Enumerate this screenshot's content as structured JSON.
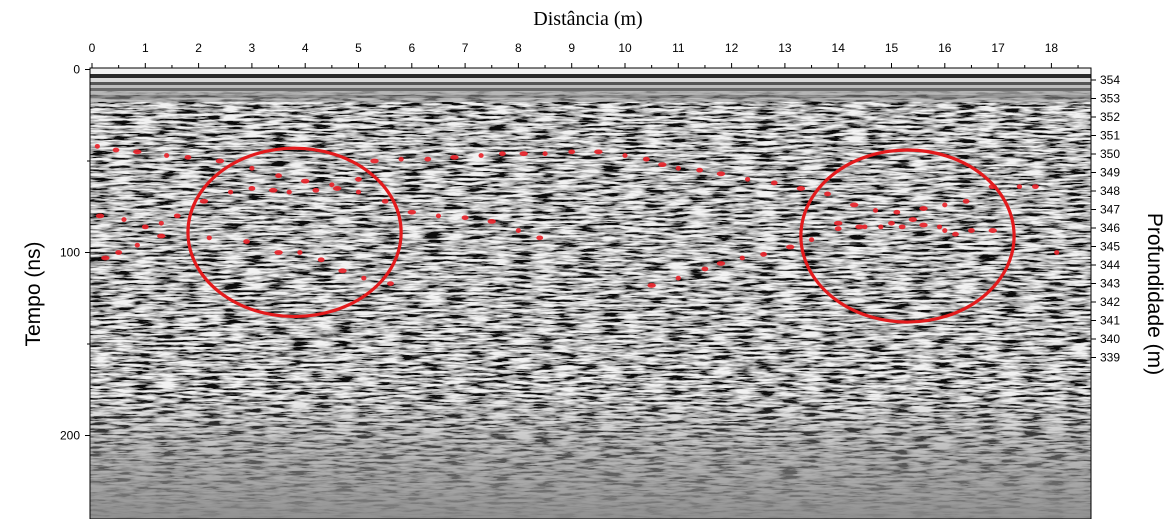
{
  "chart_data": {
    "type": "radargram",
    "title": "Distância (m)",
    "xlabel": "Distância (m)",
    "ylabel_left": "Tempo (ns)",
    "ylabel_right": "Profundidade (m)",
    "x_ticks": [
      0,
      1,
      2,
      3,
      4,
      5,
      6,
      7,
      8,
      9,
      10,
      11,
      12,
      13,
      14,
      15,
      16,
      17,
      18
    ],
    "xlim": [
      0,
      18.9
    ],
    "left_ticks": [
      0,
      100,
      200
    ],
    "left_ylim": [
      0,
      245
    ],
    "right_ticks": [
      354,
      353,
      352,
      351,
      350,
      349,
      348,
      347,
      346,
      345,
      344,
      343,
      342,
      341,
      340,
      339
    ],
    "right_ylim": [
      354.1,
      338.6
    ],
    "colors": {
      "markers": "#e8232a",
      "circles": "#e31a1c",
      "noise": "#808080"
    },
    "reflector_points": [
      {
        "x": 0.1,
        "t": 42
      },
      {
        "x": 0.45,
        "t": 44
      },
      {
        "x": 0.85,
        "t": 45
      },
      {
        "x": 1.4,
        "t": 47
      },
      {
        "x": 1.8,
        "t": 48
      },
      {
        "x": 2.4,
        "t": 50
      },
      {
        "x": 3.0,
        "t": 54
      },
      {
        "x": 3.5,
        "t": 58
      },
      {
        "x": 4.0,
        "t": 61
      },
      {
        "x": 4.5,
        "t": 63
      },
      {
        "x": 5.0,
        "t": 60
      },
      {
        "x": 5.3,
        "t": 50
      },
      {
        "x": 5.8,
        "t": 49
      },
      {
        "x": 6.3,
        "t": 49
      },
      {
        "x": 6.8,
        "t": 48
      },
      {
        "x": 7.3,
        "t": 47
      },
      {
        "x": 7.7,
        "t": 46
      },
      {
        "x": 8.1,
        "t": 46
      },
      {
        "x": 8.5,
        "t": 46
      },
      {
        "x": 9.0,
        "t": 45
      },
      {
        "x": 9.5,
        "t": 45
      },
      {
        "x": 10.0,
        "t": 47
      },
      {
        "x": 10.4,
        "t": 49
      },
      {
        "x": 10.7,
        "t": 52
      },
      {
        "x": 11.0,
        "t": 54
      },
      {
        "x": 11.4,
        "t": 55
      },
      {
        "x": 11.8,
        "t": 57
      },
      {
        "x": 12.3,
        "t": 60
      },
      {
        "x": 12.8,
        "t": 62
      },
      {
        "x": 13.3,
        "t": 65
      },
      {
        "x": 1.3,
        "t": 84
      },
      {
        "x": 1.6,
        "t": 80
      },
      {
        "x": 2.1,
        "t": 72
      },
      {
        "x": 2.6,
        "t": 67
      },
      {
        "x": 3.0,
        "t": 65
      },
      {
        "x": 3.4,
        "t": 66
      },
      {
        "x": 3.7,
        "t": 67
      },
      {
        "x": 4.2,
        "t": 66
      },
      {
        "x": 4.6,
        "t": 65
      },
      {
        "x": 5.0,
        "t": 67
      },
      {
        "x": 5.5,
        "t": 72
      },
      {
        "x": 6.0,
        "t": 78
      },
      {
        "x": 6.5,
        "t": 80
      },
      {
        "x": 7.0,
        "t": 81
      },
      {
        "x": 7.5,
        "t": 83
      },
      {
        "x": 8.0,
        "t": 88
      },
      {
        "x": 8.4,
        "t": 92
      },
      {
        "x": 0.15,
        "t": 80
      },
      {
        "x": 0.6,
        "t": 82
      },
      {
        "x": 1.0,
        "t": 86
      },
      {
        "x": 1.3,
        "t": 91
      },
      {
        "x": 0.85,
        "t": 96
      },
      {
        "x": 0.5,
        "t": 100
      },
      {
        "x": 0.25,
        "t": 103
      },
      {
        "x": 2.2,
        "t": 92
      },
      {
        "x": 2.9,
        "t": 94
      },
      {
        "x": 3.5,
        "t": 100
      },
      {
        "x": 3.9,
        "t": 100
      },
      {
        "x": 4.3,
        "t": 104
      },
      {
        "x": 4.7,
        "t": 110
      },
      {
        "x": 5.1,
        "t": 114
      },
      {
        "x": 5.6,
        "t": 117
      },
      {
        "x": 10.5,
        "t": 118
      },
      {
        "x": 11.0,
        "t": 114
      },
      {
        "x": 11.5,
        "t": 109
      },
      {
        "x": 11.8,
        "t": 106
      },
      {
        "x": 12.2,
        "t": 103
      },
      {
        "x": 12.6,
        "t": 101
      },
      {
        "x": 13.1,
        "t": 97
      },
      {
        "x": 13.5,
        "t": 93
      },
      {
        "x": 14.0,
        "t": 87
      },
      {
        "x": 14.4,
        "t": 86
      },
      {
        "x": 14.8,
        "t": 86
      },
      {
        "x": 15.2,
        "t": 86
      },
      {
        "x": 15.6,
        "t": 85
      },
      {
        "x": 16.0,
        "t": 88
      },
      {
        "x": 16.5,
        "t": 88
      },
      {
        "x": 16.9,
        "t": 88
      },
      {
        "x": 18.1,
        "t": 100
      },
      {
        "x": 13.8,
        "t": 68
      },
      {
        "x": 14.3,
        "t": 74
      },
      {
        "x": 14.7,
        "t": 77
      },
      {
        "x": 15.1,
        "t": 78
      },
      {
        "x": 15.6,
        "t": 76
      },
      {
        "x": 16.0,
        "t": 74
      },
      {
        "x": 16.4,
        "t": 72
      },
      {
        "x": 16.9,
        "t": 64
      },
      {
        "x": 17.4,
        "t": 64
      },
      {
        "x": 17.7,
        "t": 64
      },
      {
        "x": 14.0,
        "t": 84
      },
      {
        "x": 14.5,
        "t": 86
      },
      {
        "x": 15.0,
        "t": 84
      },
      {
        "x": 15.4,
        "t": 82
      },
      {
        "x": 15.9,
        "t": 86
      },
      {
        "x": 16.2,
        "t": 90
      }
    ],
    "annotations": [
      {
        "type": "ellipse",
        "cx": 3.8,
        "ct": 89,
        "rx": 2.0,
        "rt": 46
      },
      {
        "type": "ellipse",
        "cx": 15.3,
        "ct": 91,
        "rx": 2.0,
        "rt": 47
      }
    ]
  }
}
